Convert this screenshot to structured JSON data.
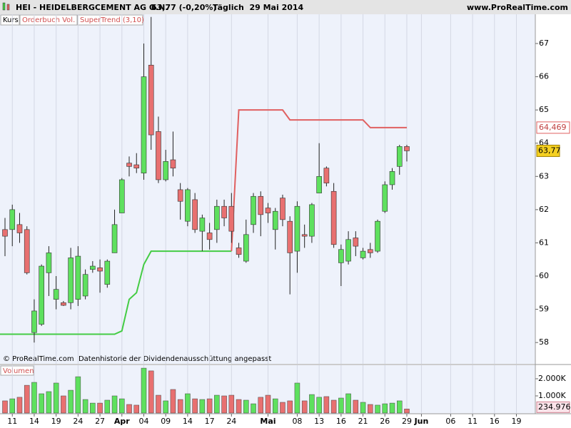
{
  "chart_data": {
    "type": "candlestick",
    "title": "HEI - HEIDELBERGCEMENT AG O.N.",
    "quote": "63,77 (-0,20%)",
    "period": "Täglich  29 Mai 2014",
    "source": "www.ProRealTime.com",
    "footnote": "© ProRealTime.com  Datenhistorie der Dividendenausschüttung angepasst",
    "legend_items": [
      "Kurs",
      "Orderbuch Vol."
    ],
    "categories": [
      null,
      "11",
      null,
      null,
      "14",
      null,
      null,
      "19",
      null,
      null,
      "24",
      null,
      null,
      "27",
      null,
      null,
      "Apr",
      null,
      null,
      "04",
      null,
      null,
      "09",
      null,
      null,
      "14",
      null,
      null,
      "17",
      null,
      null,
      "24",
      null,
      null,
      null,
      null,
      "Mai",
      null,
      null,
      null,
      "08",
      null,
      null,
      "13",
      null,
      null,
      "16",
      null,
      null,
      "21",
      null,
      null,
      "26",
      null,
      null,
      "29",
      null,
      "Jun",
      null,
      null,
      null,
      "06",
      null,
      null,
      "11",
      null,
      null,
      "16",
      null,
      null,
      "19",
      null,
      null
    ],
    "open": [
      61.4,
      61.4,
      61.55,
      61.4,
      58.3,
      58.55,
      60.1,
      59.3,
      59.2,
      59.2,
      59.3,
      59.4,
      60.2,
      60.25,
      59.75,
      60.7,
      61.9,
      63.4,
      63.35,
      63.1,
      66.35,
      64.35,
      62.9,
      63.5,
      62.6,
      61.65,
      62.3,
      61.35,
      61.3,
      61.4,
      62.1,
      62.1,
      60.85,
      60.45,
      61.55,
      62.4,
      62.05,
      61.4,
      62.35,
      61.65,
      60.75,
      61.25,
      61.2,
      62.5,
      63.25,
      62.55,
      60.4,
      60.45,
      61.15,
      60.55,
      60.8,
      60.75,
      61.95,
      62.75,
      63.3,
      63.9,
      null,
      null,
      null,
      null,
      null,
      null,
      null,
      null,
      null,
      null,
      null,
      null,
      null,
      null,
      null,
      null,
      null
    ],
    "high": [
      61.75,
      62.15,
      61.9,
      61.5,
      59.3,
      60.35,
      60.9,
      60.0,
      59.25,
      60.85,
      60.9,
      60.2,
      60.45,
      60.5,
      60.5,
      62.0,
      62.95,
      63.6,
      63.7,
      67.0,
      67.8,
      64.8,
      63.8,
      64.35,
      62.8,
      62.65,
      62.5,
      61.85,
      61.6,
      62.3,
      62.3,
      62.5,
      61.0,
      61.7,
      62.5,
      62.55,
      62.2,
      62.05,
      62.45,
      61.8,
      62.25,
      61.55,
      62.2,
      64.0,
      63.3,
      62.8,
      60.95,
      61.35,
      61.35,
      60.85,
      61.0,
      61.7,
      62.85,
      63.25,
      63.95,
      63.95,
      null,
      null,
      null,
      null,
      null,
      null,
      null,
      null,
      null,
      null,
      null,
      null,
      null,
      null,
      null,
      null,
      null
    ],
    "low": [
      60.6,
      60.9,
      61.0,
      60.05,
      58.0,
      58.5,
      59.4,
      59.0,
      59.1,
      59.0,
      59.1,
      59.3,
      60.1,
      59.5,
      59.65,
      60.7,
      61.9,
      63.0,
      63.1,
      62.9,
      63.8,
      62.8,
      62.85,
      63.0,
      61.7,
      61.5,
      61.3,
      60.75,
      60.8,
      61.0,
      61.5,
      61.0,
      60.55,
      60.4,
      61.3,
      61.2,
      61.6,
      60.8,
      61.5,
      59.45,
      60.1,
      60.85,
      61.0,
      62.5,
      62.7,
      60.85,
      59.7,
      60.35,
      60.6,
      60.5,
      60.55,
      60.7,
      61.9,
      62.6,
      63.05,
      63.45,
      null,
      null,
      null,
      null,
      null,
      null,
      null,
      null,
      null,
      null,
      null,
      null,
      null,
      null,
      null,
      null,
      null
    ],
    "close": [
      61.2,
      62.0,
      61.3,
      60.1,
      58.95,
      60.3,
      60.7,
      59.6,
      59.12,
      60.55,
      60.6,
      60.05,
      60.3,
      60.15,
      60.45,
      61.55,
      62.9,
      63.3,
      63.25,
      66.0,
      64.25,
      62.9,
      63.45,
      63.25,
      62.25,
      62.6,
      61.4,
      61.75,
      61.1,
      62.1,
      61.75,
      61.35,
      60.65,
      61.25,
      62.4,
      61.85,
      61.9,
      61.95,
      61.7,
      60.7,
      62.1,
      61.2,
      62.15,
      63.0,
      62.8,
      60.95,
      60.8,
      61.1,
      60.9,
      60.75,
      60.7,
      61.65,
      62.75,
      63.15,
      63.9,
      63.77,
      null,
      null,
      null,
      null,
      null,
      null,
      null,
      null,
      null,
      null,
      null,
      null,
      null,
      null,
      null,
      null,
      null
    ],
    "up_color": "#5ee05e",
    "down_color": "#e87070",
    "ylim": [
      57.36,
      67.88
    ],
    "yticks": [
      58,
      59,
      60,
      61,
      62,
      63,
      64,
      65,
      66,
      67
    ],
    "grid": true,
    "price_marker": {
      "value": 63.77,
      "label": "63,77"
    },
    "supertrend": {
      "name": "SuperTrend (3,10)",
      "color_up": "#44cc44",
      "color_down": "#e06060",
      "values_up": [
        58.25,
        58.25,
        58.25,
        58.25,
        58.25,
        58.25,
        58.25,
        58.25,
        58.25,
        58.25,
        58.25,
        58.25,
        58.25,
        58.25,
        58.25,
        58.25,
        58.35,
        59.3,
        59.5,
        60.35,
        60.75,
        60.75,
        60.75,
        60.75,
        60.75,
        60.75,
        60.75,
        60.75,
        60.75,
        60.75,
        60.75,
        60.75,
        null,
        null,
        null,
        null,
        null,
        null,
        null,
        null,
        null,
        null,
        null,
        null,
        null,
        null,
        null,
        null,
        null,
        null,
        null,
        null,
        null,
        null,
        null,
        null,
        null,
        null,
        null,
        null,
        null,
        null,
        null,
        null,
        null,
        null,
        null,
        null,
        null,
        null,
        null,
        null,
        null
      ],
      "values_down": [
        null,
        null,
        null,
        null,
        null,
        null,
        null,
        null,
        null,
        null,
        null,
        null,
        null,
        null,
        null,
        null,
        null,
        null,
        null,
        null,
        null,
        null,
        null,
        null,
        null,
        null,
        null,
        null,
        null,
        null,
        null,
        60.75,
        65.0,
        65.0,
        65.0,
        65.0,
        65.0,
        65.0,
        65.0,
        64.7,
        64.7,
        64.7,
        64.7,
        64.7,
        64.7,
        64.7,
        64.7,
        64.7,
        64.7,
        64.7,
        64.469,
        64.469,
        64.469,
        64.469,
        64.469,
        64.469,
        null,
        null,
        null,
        null,
        null,
        null,
        null,
        null,
        null,
        null,
        null,
        null,
        null,
        null,
        null,
        null,
        null
      ],
      "marker": {
        "value": 64.469,
        "label": "64,469"
      }
    },
    "volume": {
      "name": "Volumen",
      "values": [
        710,
        830,
        920,
        1620,
        1790,
        1125,
        1250,
        1750,
        1000,
        1330,
        2120,
        790,
        580,
        580,
        750,
        1000,
        830,
        500,
        460,
        2620,
        2460,
        1040,
        710,
        1375,
        790,
        1125,
        830,
        790,
        830,
        1040,
        1000,
        1040,
        790,
        750,
        540,
        920,
        1040,
        830,
        625,
        710,
        1750,
        710,
        1080,
        920,
        960,
        750,
        875,
        1125,
        750,
        625,
        500,
        460,
        540,
        580,
        710,
        234.976,
        null,
        null,
        null,
        null,
        null,
        null,
        null,
        null,
        null,
        null,
        null,
        null,
        null,
        null,
        null,
        null,
        null
      ],
      "ylim": [
        0,
        2790
      ],
      "yticks": [
        {
          "value": 1000,
          "label": "1.000K"
        },
        {
          "value": 2000,
          "label": "2.000K"
        }
      ]
    }
  }
}
